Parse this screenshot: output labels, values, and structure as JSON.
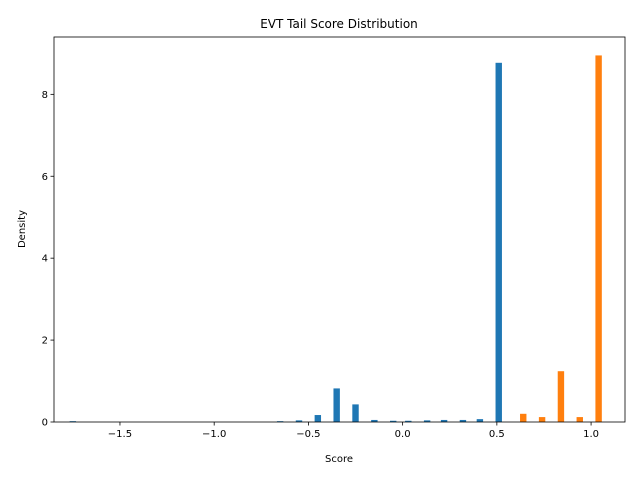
{
  "chart_data": {
    "type": "bar",
    "title": "EVT Tail Score Distribution",
    "xlabel": "Score",
    "ylabel": "Density",
    "xlim": [
      -1.85,
      1.18
    ],
    "ylim": [
      0,
      9.4
    ],
    "xticks": [
      -1.5,
      -1.0,
      -0.5,
      0.0,
      0.5,
      1.0
    ],
    "xtick_labels": [
      "−1.5",
      "−1.0",
      "−0.5",
      "0.0",
      "0.5",
      "1.0"
    ],
    "yticks": [
      0,
      2,
      4,
      6,
      8
    ],
    "ytick_labels": [
      "0",
      "2",
      "4",
      "6",
      "8"
    ],
    "bar_width": 0.034,
    "grid": false,
    "series": [
      {
        "color": "#1f77b4",
        "x": [
          -1.75,
          -0.65,
          -0.55,
          -0.45,
          -0.35,
          -0.25,
          -0.15,
          -0.05,
          0.03,
          0.13,
          0.22,
          0.32,
          0.41,
          0.51
        ],
        "values": [
          0.02,
          0.02,
          0.04,
          0.17,
          0.82,
          0.43,
          0.05,
          0.03,
          0.03,
          0.04,
          0.05,
          0.05,
          0.07,
          8.77
        ]
      },
      {
        "color": "#ff7f0e",
        "x": [
          0.64,
          0.74,
          0.84,
          0.94,
          1.04
        ],
        "values": [
          0.2,
          0.12,
          1.24,
          0.12,
          8.95
        ]
      }
    ]
  }
}
